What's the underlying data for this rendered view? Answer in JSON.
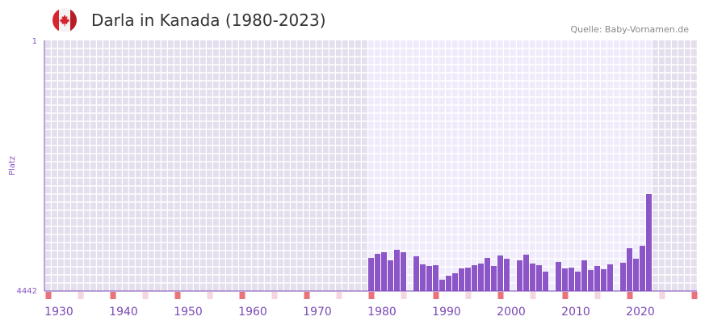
{
  "header": {
    "title": "Darla in Kanada (1980-2023)",
    "source": "Quelle: Baby-Vornamen.de",
    "flag_icon": "canada-flag-icon"
  },
  "colors": {
    "bar": "#8c55c8",
    "axis": "#7a49b4",
    "marker_red": "#e8737b",
    "marker_pink": "#f3d6df",
    "bg_outer": "#e4deed",
    "bg_inner": "#f0ebfa"
  },
  "chart_data": {
    "type": "bar",
    "title": "Darla in Kanada (1980-2023)",
    "ylabel": "Platz",
    "y_top_label": "1",
    "y_bottom_label": "4442",
    "ylim": [
      4442,
      1
    ],
    "xlim": [
      1930,
      2030
    ],
    "x_ticks": [
      "1930",
      "1940",
      "1950",
      "1960",
      "1970",
      "1980",
      "1990",
      "2000",
      "2010",
      "2020"
    ],
    "grid": true,
    "x": [
      1980,
      1981,
      1982,
      1983,
      1984,
      1985,
      1986,
      1987,
      1988,
      1989,
      1990,
      1991,
      1992,
      1993,
      1994,
      1995,
      1996,
      1997,
      1998,
      1999,
      2000,
      2001,
      2002,
      2003,
      2004,
      2005,
      2006,
      2007,
      2008,
      2009,
      2010,
      2011,
      2012,
      2013,
      2014,
      2015,
      2016,
      2017,
      2018,
      2019,
      2020,
      2021,
      2022,
      2023
    ],
    "values": [
      3855,
      3783,
      3754,
      3898,
      3711,
      3754,
      null,
      3826,
      3969,
      3998,
      3984,
      4241,
      4170,
      4127,
      4041,
      4027,
      3984,
      3955,
      3855,
      3998,
      3812,
      3869,
      null,
      3898,
      3797,
      3955,
      3984,
      4098,
      null,
      3926,
      4041,
      4027,
      4098,
      3898,
      4070,
      3998,
      4055,
      3969,
      null,
      3941,
      3683,
      3869,
      3640,
      2723
    ]
  }
}
